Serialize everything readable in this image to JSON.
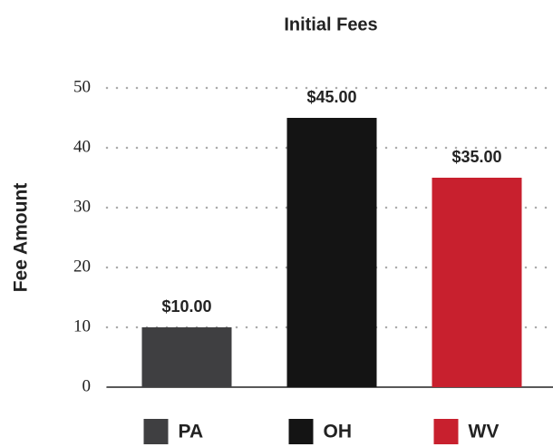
{
  "chart_data": {
    "type": "bar",
    "title": "Initial Fees",
    "y_label": "Fee Amount",
    "categories": [
      "PA",
      "OH",
      "WV"
    ],
    "values": [
      10,
      45,
      35
    ],
    "value_labels": [
      "$10.00",
      "$45.00",
      "$35.00"
    ],
    "colors": [
      "#3f3f41",
      "#141414",
      "#c8202e"
    ],
    "ylim": [
      0,
      50
    ],
    "yticks": [
      0,
      10,
      20,
      30,
      40,
      50
    ],
    "grid": true,
    "legend": "bottom"
  }
}
